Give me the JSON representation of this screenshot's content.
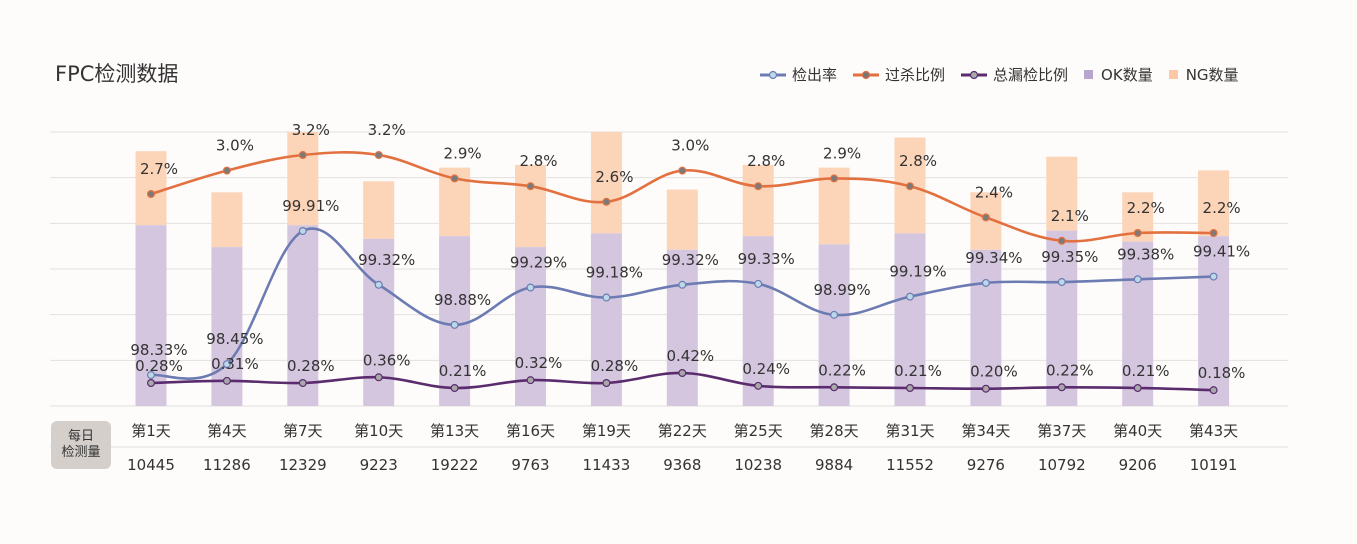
{
  "title": "FPC检测数据",
  "legend": [
    {
      "label": "检出率",
      "kind": "line",
      "color": "#6c7cb3"
    },
    {
      "label": "过杀比例",
      "kind": "line",
      "color": "#e3703f"
    },
    {
      "label": "总漏检比例",
      "kind": "line",
      "color": "#5a2c6e"
    },
    {
      "label": "OK数量",
      "kind": "bar",
      "color": "#d5c6df"
    },
    {
      "label": "NG数量",
      "kind": "bar",
      "color": "#fcd4b8"
    }
  ],
  "table": {
    "row_label_1": "每日",
    "row_label_2": "检测量"
  },
  "chart_data": {
    "type": "bar+line",
    "categories": [
      "第1天",
      "第4天",
      "第7天",
      "第10天",
      "第13天",
      "第16天",
      "第19天",
      "第22天",
      "第25天",
      "第28天",
      "第31天",
      "第34天",
      "第37天",
      "第40天",
      "第43天"
    ],
    "daily_count": [
      "10445",
      "11286",
      "12329",
      "9223",
      "19222",
      "9763",
      "11433",
      "9368",
      "10238",
      "9884",
      "11552",
      "9276",
      "10792",
      "9206",
      "10191"
    ],
    "bar_ok": [
      0.66,
      0.58,
      0.66,
      0.61,
      0.62,
      0.58,
      0.63,
      0.57,
      0.62,
      0.59,
      0.63,
      0.57,
      0.64,
      0.6,
      0.62
    ],
    "bar_total": [
      0.93,
      0.78,
      1.0,
      0.82,
      0.87,
      0.88,
      1.0,
      0.79,
      0.88,
      0.87,
      0.98,
      0.78,
      0.91,
      0.78,
      0.86
    ],
    "series": [
      {
        "name": "检出率",
        "color": "#6c7cb3",
        "values": [
          98.33,
          98.45,
          99.91,
          99.32,
          98.88,
          99.29,
          99.18,
          99.32,
          99.33,
          98.99,
          99.19,
          99.34,
          99.35,
          99.38,
          99.41
        ],
        "labels": [
          "98.33%",
          "98.45%",
          "99.91%",
          "99.32%",
          "98.88%",
          "99.29%",
          "99.18%",
          "99.32%",
          "99.33%",
          "98.99%",
          "99.19%",
          "99.34%",
          "99.35%",
          "99.38%",
          "99.41%"
        ]
      },
      {
        "name": "过杀比例",
        "color": "#e3703f",
        "values": [
          2.7,
          3.0,
          3.2,
          3.2,
          2.9,
          2.8,
          2.6,
          3.0,
          2.8,
          2.9,
          2.8,
          2.4,
          2.1,
          2.2,
          2.2
        ],
        "labels": [
          "2.7%",
          "3.0%",
          "3.2%",
          "3.2%",
          "2.9%",
          "2.8%",
          "2.6%",
          "3.0%",
          "2.8%",
          "2.9%",
          "2.8%",
          "2.4%",
          "2.1%",
          "2.2%",
          "2.2%"
        ]
      },
      {
        "name": "总漏检比例",
        "color": "#5a2c6e",
        "values": [
          0.28,
          0.31,
          0.28,
          0.36,
          0.21,
          0.32,
          0.28,
          0.42,
          0.24,
          0.22,
          0.21,
          0.2,
          0.22,
          0.21,
          0.18
        ],
        "labels": [
          "0.28%",
          "0.31%",
          "0.28%",
          "0.36%",
          "0.21%",
          "0.32%",
          "0.28%",
          "0.42%",
          "0.24%",
          "0.22%",
          "0.21%",
          "0.20%",
          "0.22%",
          "0.21%",
          "0.18%"
        ]
      }
    ],
    "grid": true,
    "legend_position": "top-right"
  }
}
